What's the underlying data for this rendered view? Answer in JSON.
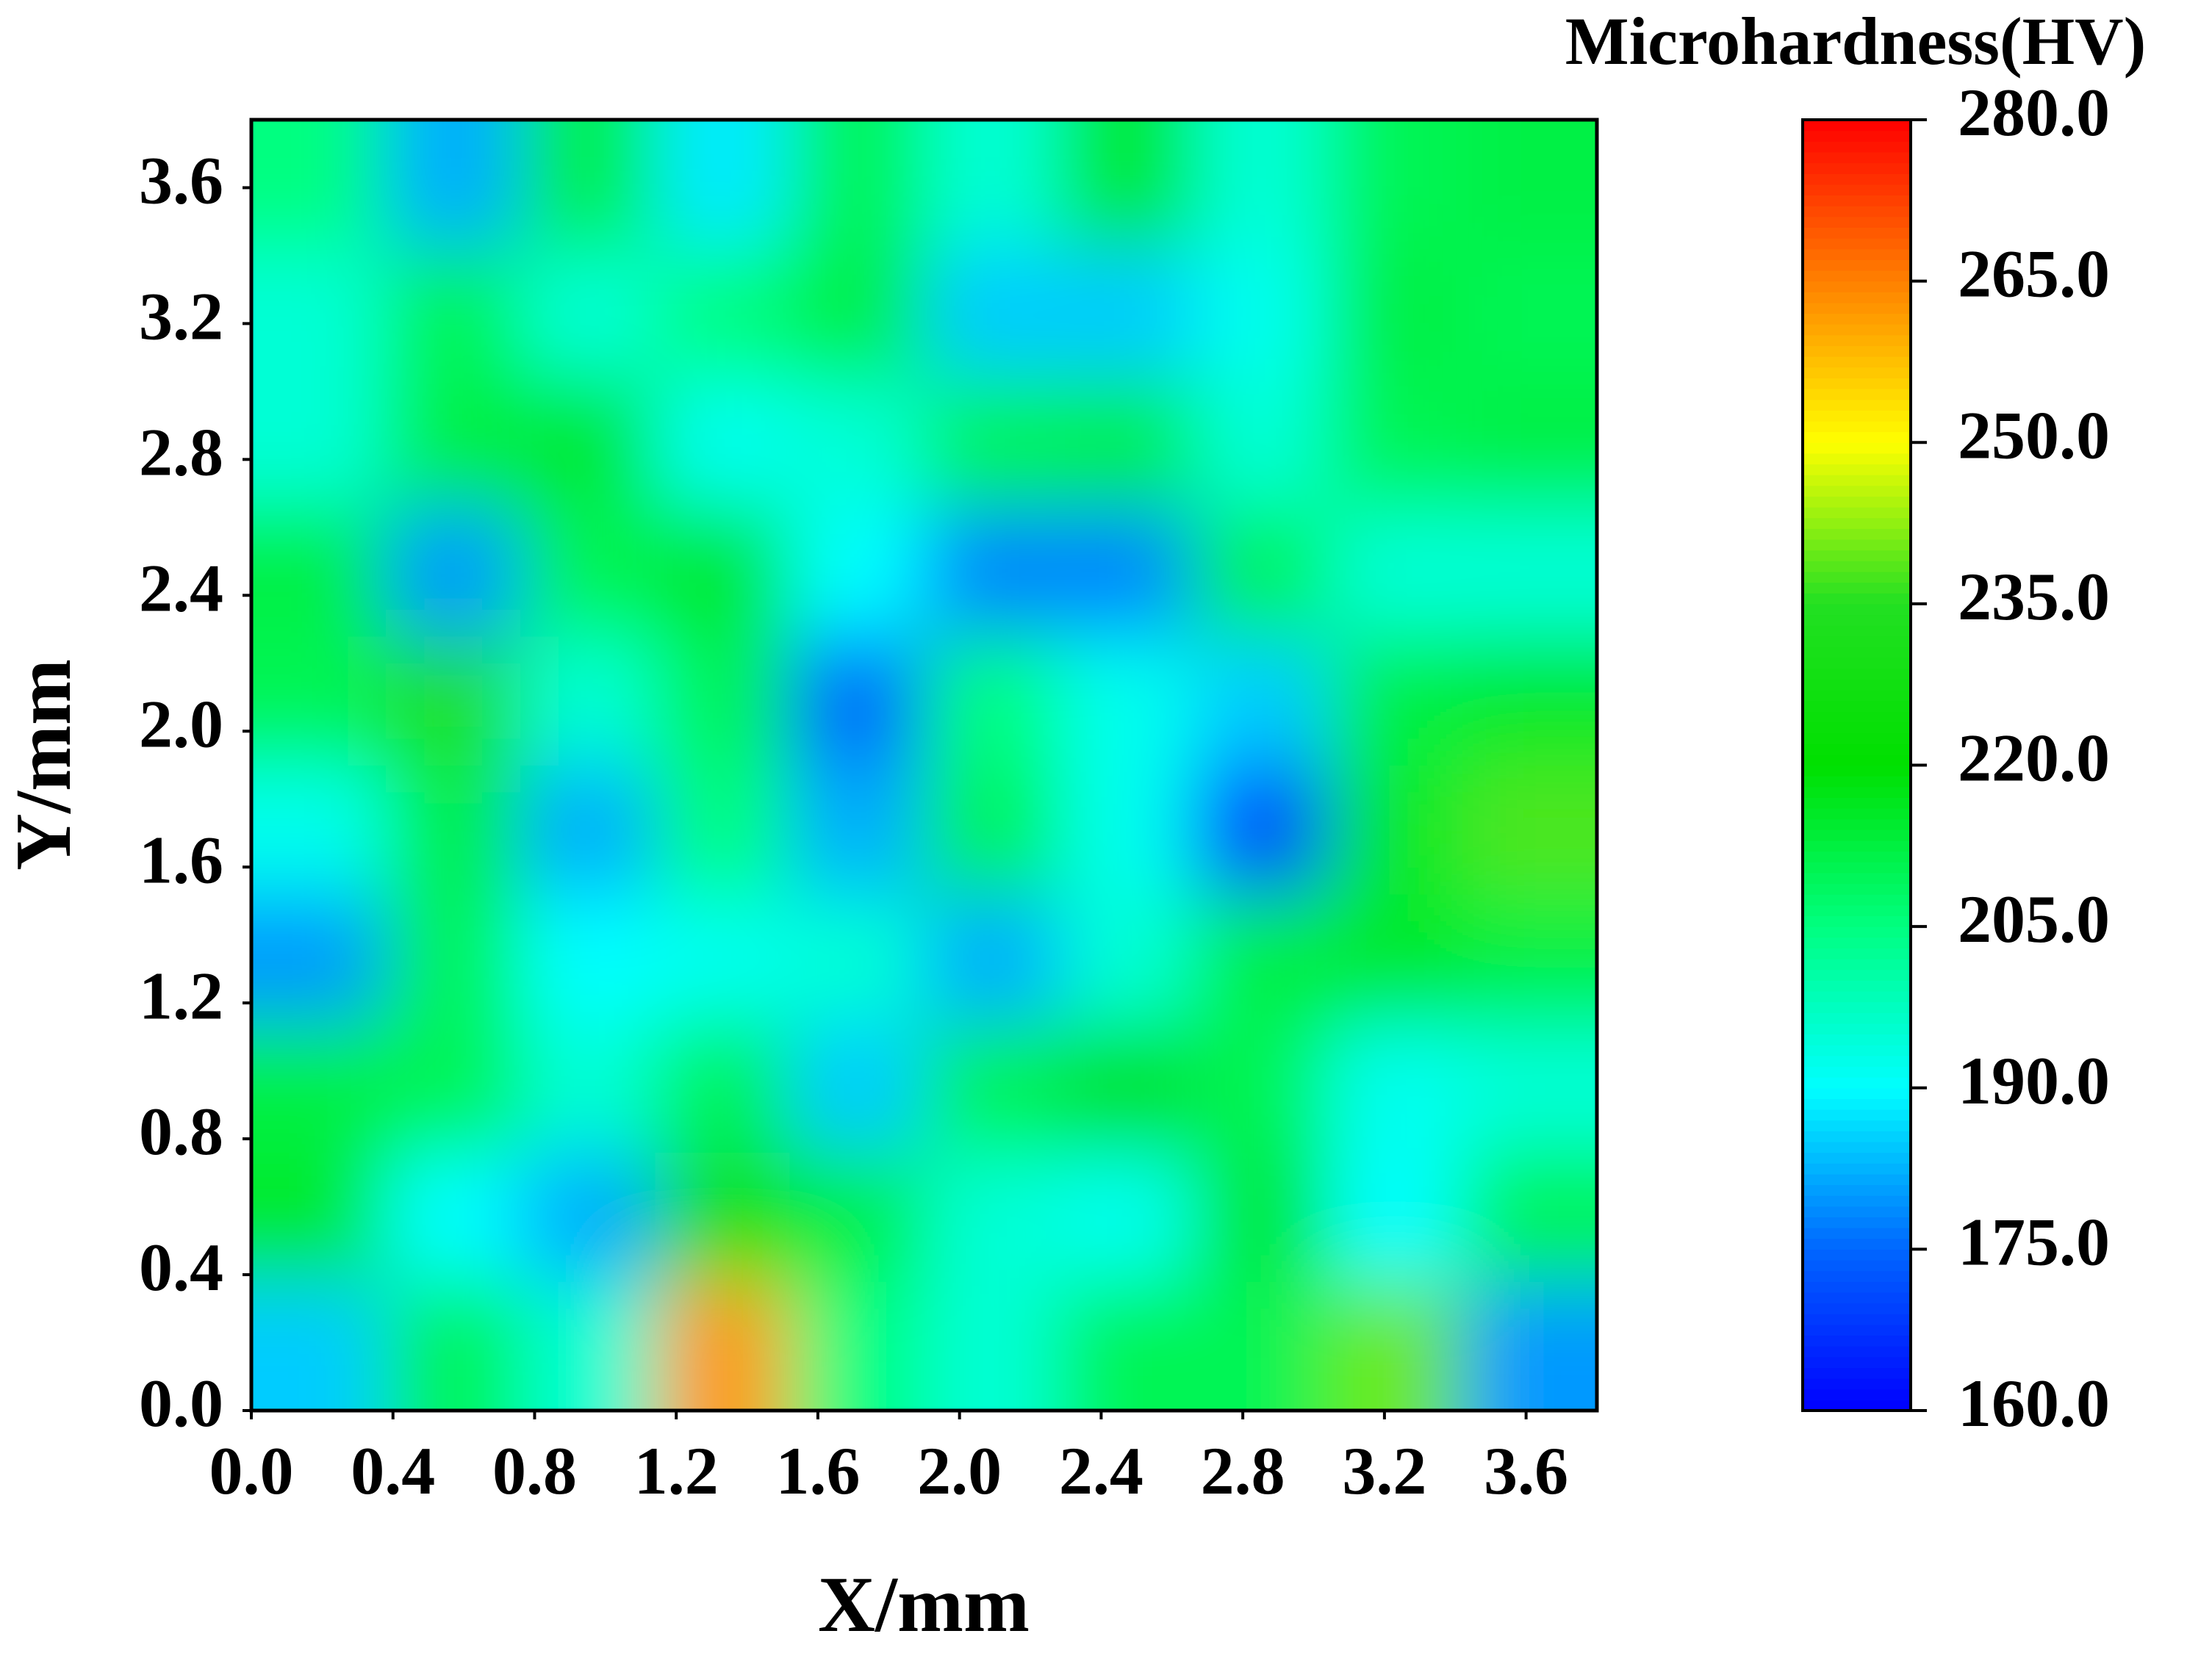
{
  "chart_data": {
    "type": "heatmap",
    "xlabel": "X/mm",
    "ylabel": "Y/mm",
    "colorbar_title": "Microhardness(HV)",
    "xlim": [
      0,
      3.8
    ],
    "ylim": [
      0,
      3.8
    ],
    "xticks": [
      {
        "value": 0,
        "label": "0.0"
      },
      {
        "value": 0.4,
        "label": "0.4"
      },
      {
        "value": 0.8,
        "label": "0.8"
      },
      {
        "value": 1.2,
        "label": "1.2"
      },
      {
        "value": 1.6,
        "label": "1.6"
      },
      {
        "value": 2.0,
        "label": "2.0"
      },
      {
        "value": 2.4,
        "label": "2.4"
      },
      {
        "value": 2.8,
        "label": "2.8"
      },
      {
        "value": 3.2,
        "label": "3.2"
      },
      {
        "value": 3.6,
        "label": "3.6"
      }
    ],
    "yticks": [
      {
        "value": 0,
        "label": "0.0"
      },
      {
        "value": 0.4,
        "label": "0.4"
      },
      {
        "value": 0.8,
        "label": "0.8"
      },
      {
        "value": 1.2,
        "label": "1.2"
      },
      {
        "value": 1.6,
        "label": "1.6"
      },
      {
        "value": 2.0,
        "label": "2.0"
      },
      {
        "value": 2.4,
        "label": "2.4"
      },
      {
        "value": 2.8,
        "label": "2.8"
      },
      {
        "value": 3.2,
        "label": "3.2"
      },
      {
        "value": 3.6,
        "label": "3.6"
      }
    ],
    "clim": [
      160,
      280
    ],
    "cticks": [
      {
        "value": 160,
        "label": "160.0"
      },
      {
        "value": 175,
        "label": "175.0"
      },
      {
        "value": 190,
        "label": "190.0"
      },
      {
        "value": 205,
        "label": "205.0"
      },
      {
        "value": 220,
        "label": "220.0"
      },
      {
        "value": 235,
        "label": "235.0"
      },
      {
        "value": 250,
        "label": "250.0"
      },
      {
        "value": 265,
        "label": "265.0"
      },
      {
        "value": 280,
        "label": "280.0"
      }
    ],
    "colorscale": [
      [
        160,
        "#0000ff"
      ],
      [
        175,
        "#0066ff"
      ],
      [
        190,
        "#00ffff"
      ],
      [
        205,
        "#00ff80"
      ],
      [
        220,
        "#00e000"
      ],
      [
        235,
        "#22e022"
      ],
      [
        250,
        "#ffff00"
      ],
      [
        265,
        "#ff8000"
      ],
      [
        280,
        "#ff0000"
      ]
    ],
    "x": [
      0.19,
      0.57,
      0.95,
      1.33,
      1.71,
      2.09,
      2.47,
      2.85,
      3.23,
      3.61
    ],
    "y": [
      0.19,
      0.57,
      0.95,
      1.33,
      1.71,
      2.09,
      2.47,
      2.85,
      3.23,
      3.61
    ],
    "z": [
      [
        185,
        210,
        195,
        262,
        205,
        195,
        210,
        210,
        240,
        180
      ],
      [
        215,
        190,
        182,
        225,
        212,
        195,
        192,
        215,
        190,
        210
      ],
      [
        212,
        210,
        195,
        210,
        185,
        210,
        218,
        210,
        192,
        195
      ],
      [
        180,
        210,
        190,
        192,
        195,
        182,
        195,
        212,
        215,
        212
      ],
      [
        192,
        212,
        182,
        205,
        182,
        210,
        192,
        170,
        215,
        238
      ],
      [
        210,
        232,
        195,
        210,
        175,
        205,
        192,
        185,
        212,
        215
      ],
      [
        212,
        180,
        210,
        215,
        190,
        178,
        178,
        210,
        195,
        195
      ],
      [
        195,
        212,
        215,
        192,
        195,
        210,
        212,
        195,
        210,
        212
      ],
      [
        195,
        210,
        195,
        205,
        212,
        185,
        185,
        192,
        212,
        210
      ],
      [
        205,
        182,
        212,
        188,
        210,
        195,
        215,
        195,
        210,
        212
      ]
    ]
  }
}
